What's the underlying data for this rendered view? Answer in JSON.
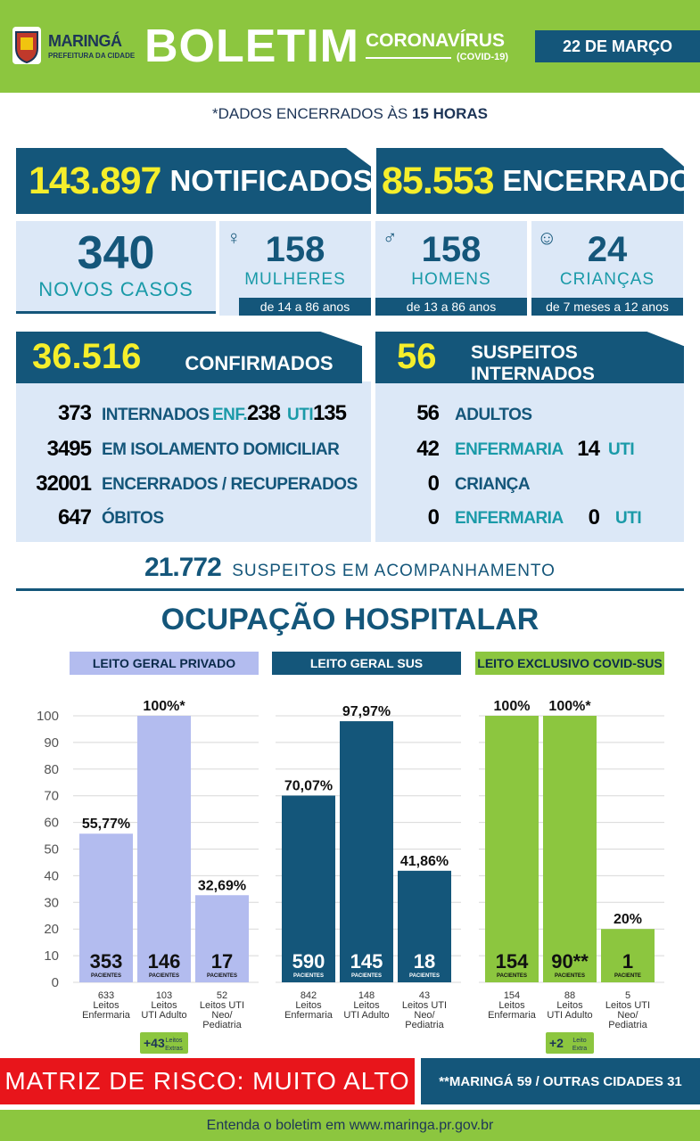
{
  "header": {
    "city": "MARINGÁ",
    "subtitle": "PREFEITURA DA CIDADE",
    "title": "BOLETIM",
    "virus": "CORONAVÍRUS",
    "covid": "(COVID-19)",
    "date": "22 DE MARÇO"
  },
  "note": {
    "prefix": "*DADOS ENCERRADOS ÀS",
    "hour": "15 HORAS"
  },
  "notificados": {
    "value": "143.897",
    "label": "NOTIFICADOS"
  },
  "encerrados": {
    "value": "85.553",
    "label": "ENCERRADOS"
  },
  "novos": {
    "value": "340",
    "label": "NOVOS CASOS"
  },
  "mulheres": {
    "value": "158",
    "label": "MULHERES",
    "age": "de 14 a 86 anos"
  },
  "homens": {
    "value": "158",
    "label": "HOMENS",
    "age": "de 13 a 86 anos"
  },
  "criancas": {
    "value": "24",
    "label": "CRIANÇAS",
    "age": "de 7 meses a 12 anos"
  },
  "confirmados": {
    "value": "36.516",
    "label": "CONFIRMADOS",
    "rows": [
      {
        "num": "373",
        "label": "INTERNADOS",
        "enf_lbl": "ENF.",
        "enf": "238",
        "uti_lbl": "UTI",
        "uti": "135"
      },
      {
        "num": "3495",
        "label": "EM ISOLAMENTO DOMICILIAR"
      },
      {
        "num": "32001",
        "label": "ENCERRADOS / RECUPERADOS"
      },
      {
        "num": "647",
        "label": "ÓBITOS"
      }
    ]
  },
  "suspeitos": {
    "value": "56",
    "label": "SUSPEITOS INTERNADOS",
    "rows": [
      {
        "num": "56",
        "label": "ADULTOS"
      },
      {
        "num": "42",
        "label": "ENFERMARIA",
        "uti_num": "14",
        "uti_lbl": "UTI"
      },
      {
        "num": "0",
        "label": "CRIANÇA"
      },
      {
        "num": "0",
        "label": "ENFERMARIA",
        "uti_num": "0",
        "uti_lbl": "UTI"
      }
    ]
  },
  "acompanhamento": {
    "value": "21.772",
    "label": "SUSPEITOS EM ACOMPANHAMENTO"
  },
  "ocupacao_title": "OCUPAÇÃO HOSPITALAR",
  "risk": "MATRIZ DE RISCO: MUITO ALTO",
  "cities": "**MARINGÁ 59 / OUTRAS CIDADES 31",
  "footer": "Entenda o boletim em www.maringa.pr.gov.br",
  "colors": {
    "navy": "#14567a",
    "green": "#8cc63f",
    "lavender": "#b3bcef",
    "yellow": "#f5ee2b",
    "red": "#e8151b"
  },
  "chart_data": {
    "type": "bar",
    "ylim": [
      0,
      100
    ],
    "yticks": [
      0,
      10,
      20,
      30,
      40,
      50,
      60,
      70,
      80,
      90,
      100
    ],
    "groups": [
      {
        "name": "LEITO GERAL PRIVADO",
        "color": "#b3bcef",
        "bars": [
          {
            "pct": 55.77,
            "pct_label": "55,77%",
            "patients": "353",
            "pat_label": "PACIENTES",
            "total": "633",
            "cat": "Leitos Enfermaria"
          },
          {
            "pct": 100,
            "pct_label": "100%*",
            "patients": "146",
            "pat_label": "PACIENTES",
            "total": "103",
            "cat": "Leitos UTI Adulto"
          },
          {
            "pct": 32.69,
            "pct_label": "32,69%",
            "patients": "17",
            "pat_label": "PACIENTES",
            "total": "52",
            "cat": "Leitos UTI Neo/ Pediatria"
          }
        ],
        "extra": {
          "value": "+43",
          "label": "Leitos Extras"
        }
      },
      {
        "name": "LEITO GERAL SUS",
        "color": "#14567a",
        "bars": [
          {
            "pct": 70.07,
            "pct_label": "70,07%",
            "patients": "590",
            "pat_label": "PACIENTES",
            "total": "842",
            "cat": "Leitos Enfermaria"
          },
          {
            "pct": 97.97,
            "pct_label": "97,97%",
            "patients": "145",
            "pat_label": "PACIENTES",
            "total": "148",
            "cat": "Leitos UTI Adulto"
          },
          {
            "pct": 41.86,
            "pct_label": "41,86%",
            "patients": "18",
            "pat_label": "PACIENTES",
            "total": "43",
            "cat": "Leitos UTI Neo/ Pediatria"
          }
        ]
      },
      {
        "name": "LEITO EXCLUSIVO COVID-SUS",
        "color": "#8cc63f",
        "bars": [
          {
            "pct": 100,
            "pct_label": "100%",
            "patients": "154",
            "pat_label": "PACIENTES",
            "total": "154",
            "cat": "Leitos Enfermaria"
          },
          {
            "pct": 100,
            "pct_label": "100%*",
            "patients": "90**",
            "pat_label": "PACIENTES",
            "total": "88",
            "cat": "Leitos UTI Adulto"
          },
          {
            "pct": 20,
            "pct_label": "20%",
            "patients": "1",
            "pat_label": "PACIENTE",
            "total": "5",
            "cat": "Leitos UTI Neo/ Pediatria"
          }
        ],
        "extra": {
          "value": "+2",
          "label": "Leito Extra"
        }
      }
    ]
  }
}
